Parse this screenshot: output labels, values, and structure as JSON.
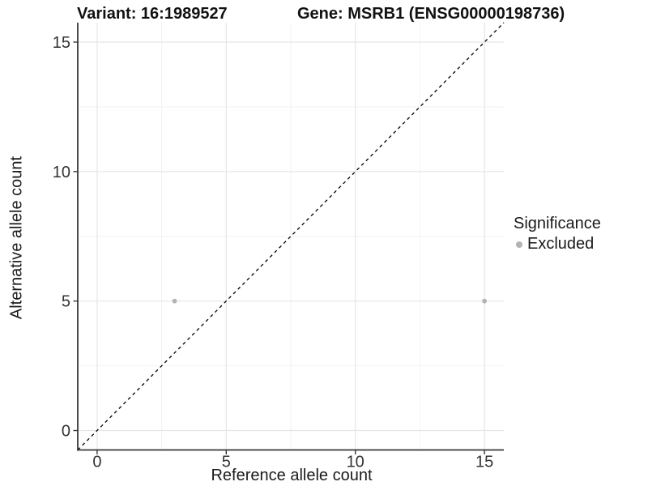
{
  "chart_data": {
    "type": "scatter",
    "title_left": "Variant: 16:1989527",
    "title_right": "Gene: MSRB1 (ENSG00000198736)",
    "xlabel": "Reference allele count",
    "ylabel": "Alternative allele count",
    "xlim": [
      -0.75,
      15.75
    ],
    "ylim": [
      -0.75,
      15.75
    ],
    "x_ticks": [
      0,
      5,
      10,
      15
    ],
    "y_ticks": [
      0,
      5,
      10,
      15
    ],
    "x_minor_ticks": [
      2.5,
      7.5,
      12.5
    ],
    "y_minor_ticks": [
      2.5,
      7.5,
      12.5
    ],
    "points": [
      {
        "x": 3,
        "y": 5,
        "significance": "Excluded"
      },
      {
        "x": 15,
        "y": 5,
        "significance": "Excluded"
      }
    ],
    "identity_line": {
      "slope": 1,
      "intercept": 0,
      "style": "dashed",
      "color": "#000000"
    },
    "legend": {
      "title": "Significance",
      "items": [
        {
          "label": "Excluded",
          "color": "#b3b3b3"
        }
      ]
    },
    "colors": {
      "point": "#b3b3b3",
      "grid_major": "#e5e5e5",
      "grid_minor": "#f2f2f2",
      "axis_line": "#383838",
      "tick_label": "#333333",
      "background": "#ffffff"
    },
    "grid": true,
    "legend_position": "right"
  }
}
